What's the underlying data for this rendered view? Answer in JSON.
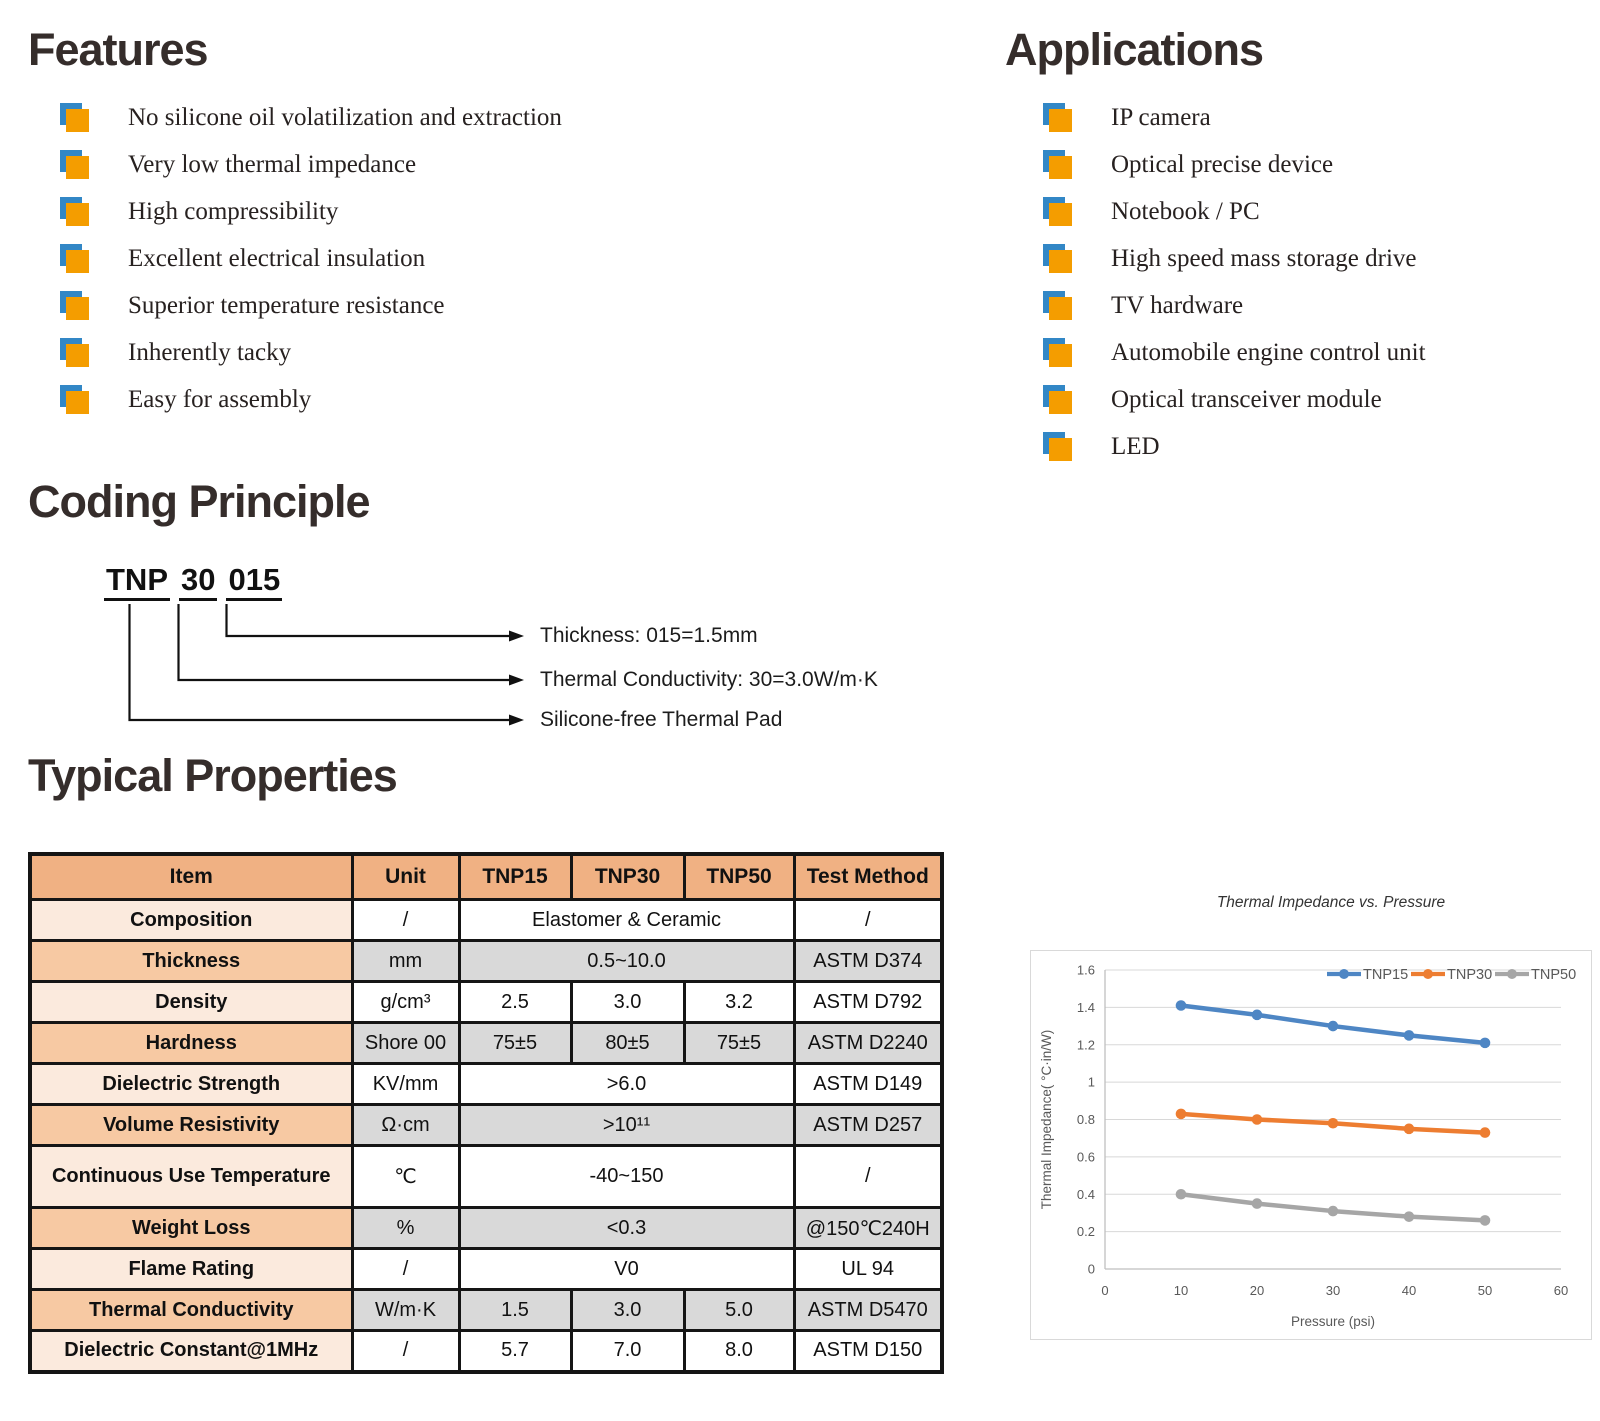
{
  "features": {
    "title": "Features",
    "bullet_icon": "layered-square-bullet",
    "items": [
      "No silicone oil volatilization and extraction",
      "Very low thermal impedance",
      "High compressibility",
      "Excellent electrical insulation",
      "Superior temperature resistance",
      "Inherently tacky",
      "Easy for assembly"
    ]
  },
  "applications": {
    "title": "Applications",
    "bullet_icon": "layered-square-bullet",
    "items": [
      "IP camera",
      "Optical precise device",
      "Notebook / PC",
      "High speed mass storage drive",
      "TV hardware",
      "Automobile engine control unit",
      "Optical transceiver module",
      "LED"
    ]
  },
  "coding": {
    "title": "Coding Principle",
    "code_parts": [
      "TNP",
      "30",
      "015"
    ],
    "labels": [
      "Thickness: 015=1.5mm",
      "Thermal Conductivity: 30=3.0W/m·K",
      "Silicone-free Thermal Pad"
    ]
  },
  "properties": {
    "title": "Typical Properties",
    "table": {
      "headers": [
        "Item",
        "Unit",
        "TNP15",
        "TNP30",
        "TNP50",
        "Test Method"
      ],
      "rows": [
        {
          "item": "Composition",
          "unit": "/",
          "values": [
            "Elastomer & Ceramic"
          ],
          "method": "/"
        },
        {
          "item": "Thickness",
          "unit": "mm",
          "values": [
            "0.5~10.0"
          ],
          "method": "ASTM D374"
        },
        {
          "item": "Density",
          "unit": "g/cm³",
          "values": [
            "2.5",
            "3.0",
            "3.2"
          ],
          "method": "ASTM D792"
        },
        {
          "item": "Hardness",
          "unit": "Shore 00",
          "values": [
            "75±5",
            "80±5",
            "75±5"
          ],
          "method": "ASTM D2240"
        },
        {
          "item": "Dielectric Strength",
          "unit": "KV/mm",
          "values": [
            ">6.0"
          ],
          "method": "ASTM D149"
        },
        {
          "item": "Volume Resistivity",
          "unit": "Ω·cm",
          "values": [
            ">10¹¹"
          ],
          "method": "ASTM D257"
        },
        {
          "item": "Continuous Use Temperature",
          "unit": "℃",
          "values": [
            "-40~150"
          ],
          "method": "/"
        },
        {
          "item": "Weight Loss",
          "unit": "%",
          "values": [
            "<0.3"
          ],
          "method": "@150℃240H"
        },
        {
          "item": "Flame Rating",
          "unit": "/",
          "values": [
            "V0"
          ],
          "method": "UL 94"
        },
        {
          "item": "Thermal Conductivity",
          "unit": "W/m·K",
          "values": [
            "1.5",
            "3.0",
            "5.0"
          ],
          "method": "ASTM D5470"
        },
        {
          "item": "Dielectric Constant@1MHz",
          "unit": "/",
          "values": [
            "5.7",
            "7.0",
            "8.0"
          ],
          "method": "ASTM D150"
        }
      ]
    }
  },
  "chart_data": {
    "type": "line",
    "title": "Thermal Impedance vs. Pressure",
    "xlabel": "Pressure (psi)",
    "ylabel": "Thermal Impedance( °C·in/W)",
    "x": [
      10,
      20,
      30,
      40,
      50
    ],
    "series": [
      {
        "name": "TNP15",
        "color": "#4E86C4",
        "values": [
          1.41,
          1.36,
          1.3,
          1.25,
          1.21
        ]
      },
      {
        "name": "TNP30",
        "color": "#ED7D31",
        "values": [
          0.83,
          0.8,
          0.78,
          0.75,
          0.73
        ]
      },
      {
        "name": "TNP50",
        "color": "#A6A6A6",
        "values": [
          0.4,
          0.35,
          0.31,
          0.28,
          0.26
        ]
      }
    ],
    "xlim": [
      0,
      60
    ],
    "ylim": [
      0,
      1.6
    ],
    "xticks": [
      0,
      10,
      20,
      30,
      40,
      50,
      60
    ],
    "yticks": [
      0,
      0.2,
      0.4,
      0.6,
      0.8,
      1,
      1.2,
      1.4,
      1.6
    ],
    "grid": true,
    "legend_position": "top-right"
  },
  "colors": {
    "bullet_orange": "#F49D00",
    "bullet_blue": "#3287C6",
    "table_header": "#F0B183",
    "table_item_light": "#FBEADD",
    "table_item_medium": "#F7C9A3",
    "table_gray": "#D9D9D9",
    "border_dark": "#151515",
    "series_blue": "#4E86C4",
    "series_orange": "#ED7D31",
    "series_gray": "#A6A6A6"
  }
}
